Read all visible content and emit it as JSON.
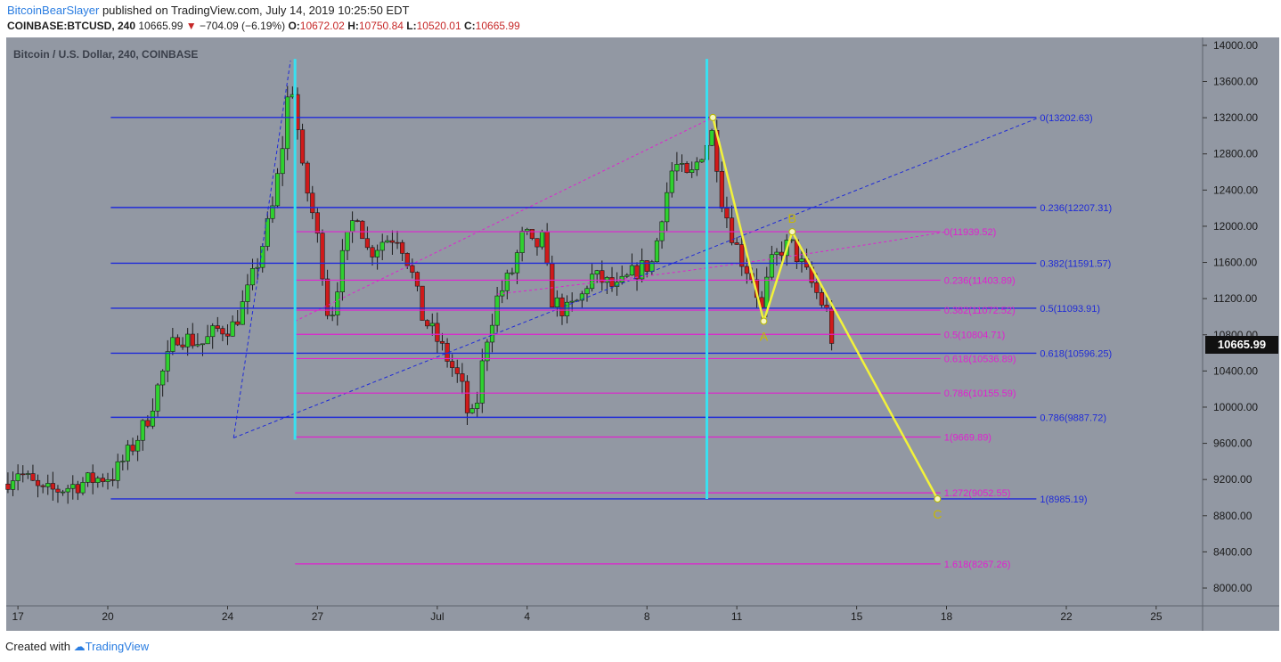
{
  "header": {
    "author": "BitcoinBearSlayer",
    "published_text": "published on TradingView.com, July 14, 2019 10:25:50 EDT",
    "symbol": "COINBASE:BTCUSD, 240",
    "last": "10665.99",
    "change": "−704.09 (−6.19%)",
    "o_label": "O:",
    "o_value": "10672.02",
    "h_label": "H:",
    "h_value": "10750.84",
    "l_label": "L:",
    "l_value": "10520.01",
    "c_label": "C:",
    "c_value": "10665.99"
  },
  "footer": {
    "created": "Created with",
    "brand": "TradingView"
  },
  "current_price_label": "10665.99",
  "chart_data": {
    "type": "candlestick",
    "title": "Bitcoin / U.S. Dollar, 240, COINBASE",
    "ylim": [
      7800,
      14200
    ],
    "y_ticks": [
      14000,
      13600,
      13200,
      12800,
      12400,
      12000,
      11600,
      11200,
      10800,
      10400,
      10000,
      9600,
      9200,
      8800,
      8400,
      8000
    ],
    "y_tick_labels": [
      "14000.00",
      "13600.00",
      "13200.00",
      "12800.00",
      "12400.00",
      "12000.00",
      "11600.00",
      "11200.00",
      "10800.00",
      "10400.00",
      "10000.00",
      "9600.00",
      "9200.00",
      "8800.00",
      "8400.00",
      "8000.00"
    ],
    "x_ticks": [
      {
        "day": 17,
        "label": "17"
      },
      {
        "day": 20,
        "label": "20"
      },
      {
        "day": 24,
        "label": "24"
      },
      {
        "day": 27,
        "label": "27"
      },
      {
        "day": 31,
        "label": "Jul"
      },
      {
        "day": 34,
        "label": "4"
      },
      {
        "day": 38,
        "label": "8"
      },
      {
        "day": 41,
        "label": "11"
      },
      {
        "day": 45,
        "label": "15"
      },
      {
        "day": 48,
        "label": "18"
      },
      {
        "day": 52,
        "label": "22"
      },
      {
        "day": 55,
        "label": "25"
      }
    ],
    "close_path": [
      [
        16.5,
        9150
      ],
      [
        17.0,
        9300
      ],
      [
        17.8,
        9050
      ],
      [
        18.5,
        9100
      ],
      [
        19.5,
        9200
      ],
      [
        20.2,
        9250
      ],
      [
        20.8,
        9550
      ],
      [
        21.3,
        9850
      ],
      [
        21.8,
        10350
      ],
      [
        22.3,
        10800
      ],
      [
        22.7,
        10750
      ],
      [
        23.2,
        10700
      ],
      [
        23.6,
        10850
      ],
      [
        24.2,
        10900
      ],
      [
        24.6,
        11200
      ],
      [
        25.0,
        11600
      ],
      [
        25.5,
        12200
      ],
      [
        25.8,
        12800
      ],
      [
        26.1,
        13700
      ],
      [
        26.25,
        13300
      ],
      [
        26.5,
        12600
      ],
      [
        26.8,
        12200
      ],
      [
        27.1,
        11700
      ],
      [
        27.4,
        10900
      ],
      [
        27.8,
        11600
      ],
      [
        28.3,
        12200
      ],
      [
        28.7,
        11700
      ],
      [
        29.2,
        11850
      ],
      [
        29.7,
        11900
      ],
      [
        30.1,
        11550
      ],
      [
        30.5,
        11000
      ],
      [
        30.9,
        10800
      ],
      [
        31.4,
        10500
      ],
      [
        31.8,
        10250
      ],
      [
        32.1,
        9800
      ],
      [
        32.35,
        10100
      ],
      [
        32.6,
        10700
      ],
      [
        33.0,
        11200
      ],
      [
        33.5,
        11500
      ],
      [
        33.9,
        11950
      ],
      [
        34.2,
        11750
      ],
      [
        34.5,
        11850
      ],
      [
        34.8,
        11200
      ],
      [
        35.3,
        11050
      ],
      [
        35.8,
        11200
      ],
      [
        36.1,
        11450
      ],
      [
        36.5,
        11400
      ],
      [
        37.0,
        11300
      ],
      [
        37.6,
        11500
      ],
      [
        38.2,
        11600
      ],
      [
        38.5,
        12150
      ],
      [
        38.9,
        12700
      ],
      [
        39.4,
        12500
      ],
      [
        39.8,
        12800
      ],
      [
        40.2,
        13050
      ],
      [
        40.5,
        12300
      ],
      [
        40.9,
        11850
      ],
      [
        41.2,
        11600
      ],
      [
        41.6,
        11400
      ],
      [
        41.8,
        11000
      ],
      [
        42.1,
        11550
      ],
      [
        42.5,
        11750
      ],
      [
        42.8,
        11800
      ],
      [
        43.2,
        11550
      ],
      [
        43.6,
        11300
      ],
      [
        44.0,
        11050
      ],
      [
        44.2,
        10700
      ],
      [
        44.3,
        10666
      ]
    ],
    "levels": [
      {
        "set": "fib_blue",
        "ratio": "0",
        "value": 13202.63,
        "label": "0(13202.63)"
      },
      {
        "set": "fib_blue",
        "ratio": "0.236",
        "value": 12207.31,
        "label": "0.236(12207.31)"
      },
      {
        "set": "fib_blue",
        "ratio": "0.382",
        "value": 11591.57,
        "label": "0.382(11591.57)"
      },
      {
        "set": "fib_blue",
        "ratio": "0.5",
        "value": 11093.91,
        "label": "0.5(11093.91)"
      },
      {
        "set": "fib_blue",
        "ratio": "0.618",
        "value": 10596.25,
        "label": "0.618(10596.25)"
      },
      {
        "set": "fib_blue",
        "ratio": "0.786",
        "value": 9887.72,
        "label": "0.786(9887.72)"
      },
      {
        "set": "fib_blue",
        "ratio": "1",
        "value": 8985.19,
        "label": "1(8985.19)"
      },
      {
        "set": "fib_pink",
        "ratio": "0",
        "value": 11939.52,
        "label": "0(11939.52)"
      },
      {
        "set": "fib_pink",
        "ratio": "0.236",
        "value": 11403.89,
        "label": "0.236(11403.89)"
      },
      {
        "set": "fib_pink",
        "ratio": "0.382",
        "value": 11072.52,
        "label": "0.382(11072.52)"
      },
      {
        "set": "fib_pink",
        "ratio": "0.5",
        "value": 10804.71,
        "label": "0.5(10804.71)"
      },
      {
        "set": "fib_pink",
        "ratio": "0.618",
        "value": 10536.89,
        "label": "0.618(10536.89)"
      },
      {
        "set": "fib_pink",
        "ratio": "0.786",
        "value": 10155.59,
        "label": "0.786(10155.59)"
      },
      {
        "set": "fib_pink",
        "ratio": "1",
        "value": 9669.89,
        "label": "1(9669.89)"
      },
      {
        "set": "fib_pink",
        "ratio": "1.272",
        "value": 9052.55,
        "label": "1.272(9052.55)"
      },
      {
        "set": "fib_pink",
        "ratio": "1.618",
        "value": 8267.26,
        "label": "1.618(8267.26)"
      }
    ],
    "abc_pattern": [
      {
        "day": 40.2,
        "price": 13202.63,
        "label": ""
      },
      {
        "day": 41.9,
        "price": 10950,
        "label": "A"
      },
      {
        "day": 42.85,
        "price": 11939.52,
        "label": "B"
      },
      {
        "day": 47.7,
        "price": 8985.19,
        "label": "C"
      }
    ],
    "vertical_markers": [
      {
        "day": 26.25
      },
      {
        "day": 40.0
      }
    ],
    "grid": false,
    "colors": {
      "background": "#9298a3",
      "fib_blue": "#1f2bd8",
      "fib_pink": "#e020d0",
      "pattern": "#f2f23a",
      "marker": "#39e0f0",
      "up": "#2fd12f",
      "down": "#d01a1a"
    }
  }
}
